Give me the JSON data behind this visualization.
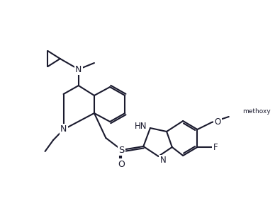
{
  "background_color": "#ffffff",
  "figsize": [
    3.88,
    2.87
  ],
  "dpi": 100,
  "bond_color": "#1a1a2e",
  "bond_lw": 1.5,
  "label_fontsize": 8.5,
  "atom_labels": {
    "N_quinoline": "N",
    "N_amine": "N",
    "NH": "HN",
    "N_benz": "N",
    "S": "S",
    "O": "O",
    "F": "F",
    "OMe": "O"
  }
}
